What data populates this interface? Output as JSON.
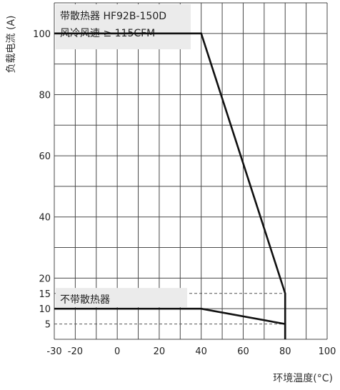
{
  "chart_data": {
    "type": "line",
    "title": "",
    "xlabel": "环境温度(°C)",
    "ylabel": "负载电流 (A)",
    "xlim": [
      -30,
      100
    ],
    "ylim": [
      0,
      110
    ],
    "x_ticks": [
      -30,
      -20,
      0,
      20,
      40,
      60,
      80,
      100
    ],
    "y_ticks": [
      5,
      10,
      15,
      20,
      40,
      60,
      80,
      100
    ],
    "grid": true,
    "series": [
      {
        "annotation_lines": [
          "带散热器 HF92B-150D",
          "风冷风速 ≥ 115CFM"
        ],
        "x": [
          -30,
          40,
          80,
          80
        ],
        "y": [
          100,
          100,
          15,
          0
        ]
      },
      {
        "annotation_lines": [
          "不带散热器"
        ],
        "x": [
          -30,
          40,
          80,
          80
        ],
        "y": [
          10,
          10,
          5,
          0
        ]
      }
    ],
    "reference_lines_y": [
      15,
      5
    ]
  }
}
